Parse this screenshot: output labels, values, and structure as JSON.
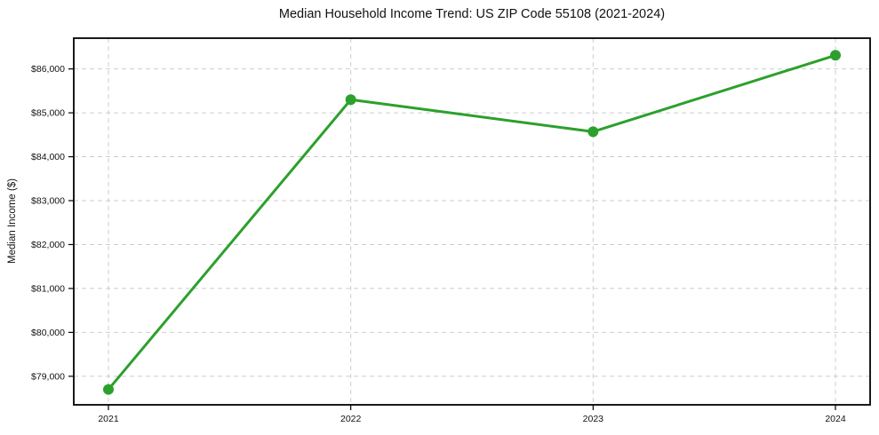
{
  "chart_data": {
    "type": "line",
    "title": "Median Household Income Trend: US ZIP Code 55108 (2021-2024)",
    "xlabel": "",
    "ylabel": "Median Income ($)",
    "categories": [
      "2021",
      "2022",
      "2023",
      "2024"
    ],
    "series": [
      {
        "name": "Median Household Income",
        "values": [
          78700,
          85300,
          84570,
          86310
        ]
      }
    ],
    "y_ticks": [
      79000,
      80000,
      81000,
      82000,
      83000,
      84000,
      85000,
      86000
    ],
    "y_tick_labels": [
      "$79,000",
      "$80,000",
      "$81,000",
      "$82,000",
      "$83,000",
      "$84,000",
      "$85,000",
      "$86,000"
    ],
    "ylim": [
      78350,
      86700
    ],
    "grid": true,
    "legend": "none",
    "line_color": "#2ca02c",
    "marker": "circle",
    "marker_color": "#2ca02c",
    "grid_color": "#cdcdcd",
    "axis_color": "#000000",
    "text_color": "#111111",
    "background_color": "#ffffff"
  }
}
